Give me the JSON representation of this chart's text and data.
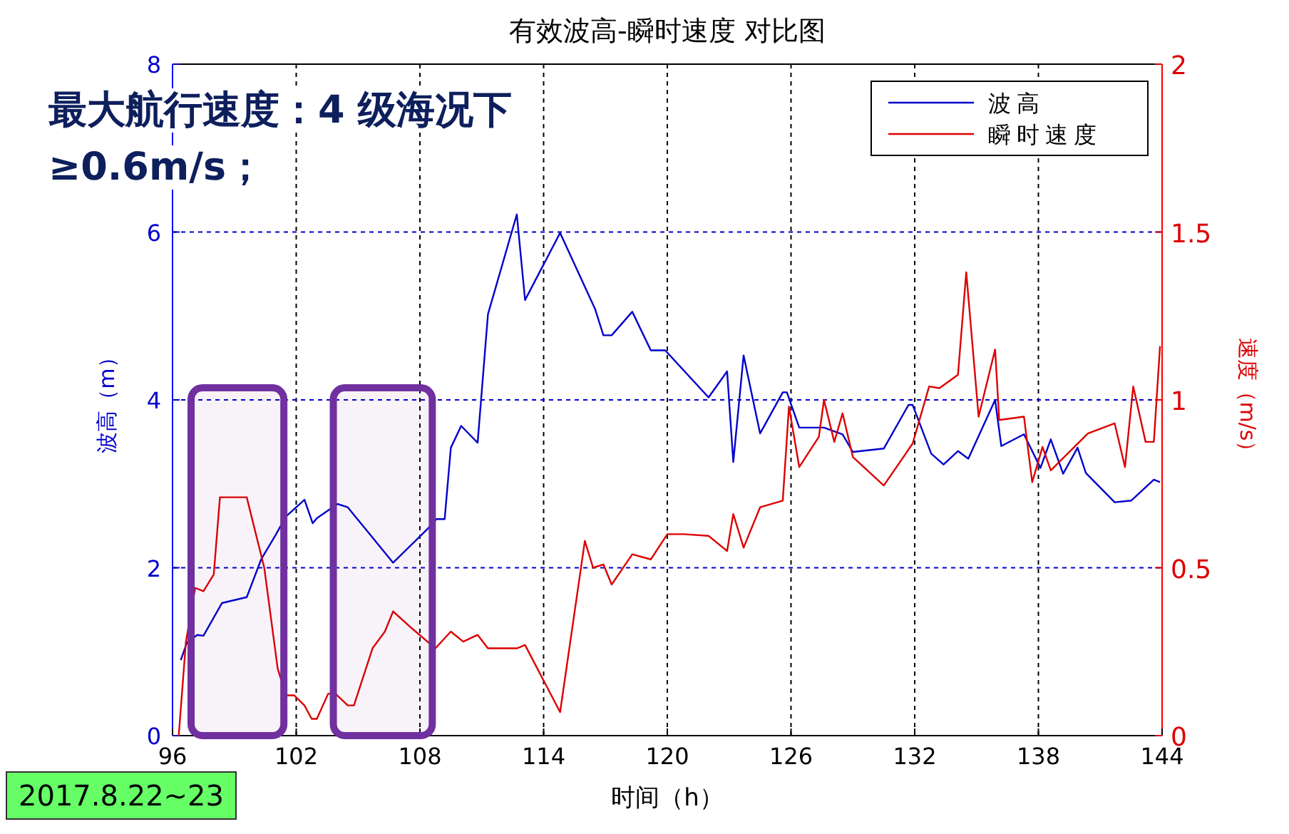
{
  "chart_data": {
    "type": "line",
    "title": "有效波高-瞬时速度 对比图",
    "xlabel": "时间（h）",
    "ylabel": "波高（m）",
    "y2label": "速度（m/s）",
    "annotations": [
      "最大航行速度：4 级海况下 ≥0.6m/s；",
      "2017.8.22~23"
    ],
    "xlim": [
      96,
      144
    ],
    "xticks": [
      96,
      102,
      108,
      114,
      120,
      126,
      132,
      138,
      144
    ],
    "ylim": [
      0,
      8
    ],
    "yticks": [
      0,
      2,
      4,
      6,
      8
    ],
    "y2lim": [
      0,
      2
    ],
    "y2ticks": [
      0,
      0.5,
      1,
      1.5,
      2
    ],
    "grid": true,
    "legend": "top right",
    "bands": [
      {
        "axis": "x",
        "from": 96.9,
        "to": 101.4,
        "color": "#7030a0"
      },
      {
        "axis": "x",
        "from": 103.8,
        "to": 108.6,
        "color": "#7030a0"
      }
    ],
    "series": [
      {
        "name": "波高",
        "color": "#0000cc",
        "x": [
          96.4,
          96.7,
          97.2,
          97.5,
          98.4,
          99.6,
          100.3,
          101.0,
          101.5,
          102.4,
          102.8,
          103.0,
          104.0,
          104.5,
          106.7,
          108.4,
          108.8,
          109.2,
          109.5,
          110.0,
          110.8,
          111.3,
          112.7,
          113.1,
          114.8,
          116.5,
          116.9,
          117.3,
          118.3,
          119.2,
          119.9,
          122.0,
          122.9,
          123.2,
          123.7,
          124.5,
          125.6,
          125.8,
          126.4,
          127.6,
          128.5,
          129.0,
          130.5,
          131.7,
          131.9,
          132.8,
          133.4,
          134.1,
          134.6,
          135.9,
          136.2,
          137.3,
          138.1,
          138.6,
          139.2,
          139.9,
          140.3,
          141.7,
          142.5,
          143.6,
          143.9
        ],
        "values": [
          0.9,
          1.11,
          1.2,
          1.19,
          1.58,
          1.65,
          2.1,
          2.39,
          2.61,
          2.81,
          2.53,
          2.59,
          2.76,
          2.72,
          2.06,
          2.47,
          2.58,
          2.58,
          3.43,
          3.69,
          3.49,
          5.02,
          6.21,
          5.19,
          5.99,
          5.08,
          4.77,
          4.77,
          5.05,
          4.59,
          4.59,
          4.03,
          4.34,
          3.26,
          4.53,
          3.6,
          4.09,
          4.09,
          3.67,
          3.67,
          3.59,
          3.38,
          3.42,
          3.94,
          3.94,
          3.36,
          3.23,
          3.39,
          3.3,
          4.0,
          3.45,
          3.59,
          3.19,
          3.53,
          3.12,
          3.43,
          3.13,
          2.78,
          2.8,
          3.05,
          3.02
        ]
      },
      {
        "name": "瞬时速度",
        "color": "#dd0000",
        "axis": "y2",
        "x": [
          96.3,
          96.65,
          97.1,
          97.5,
          98.0,
          98.3,
          98.95,
          99.6,
          100.45,
          101.1,
          101.5,
          101.9,
          102.4,
          102.75,
          103.0,
          103.55,
          103.9,
          104.5,
          104.8,
          105.7,
          106.3,
          106.7,
          107.6,
          108.75,
          109.5,
          110.1,
          110.8,
          111.3,
          112.7,
          113.1,
          114.8,
          116.0,
          116.4,
          116.9,
          117.3,
          118.3,
          119.2,
          120.0,
          120.8,
          122.0,
          122.9,
          123.2,
          123.7,
          124.5,
          125.6,
          125.9,
          126.4,
          127.35,
          127.6,
          128.1,
          128.5,
          129.0,
          130.5,
          131.9,
          132.7,
          133.2,
          134.1,
          134.5,
          135.1,
          135.9,
          136.1,
          137.3,
          137.7,
          138.2,
          138.6,
          140.4,
          141.7,
          142.2,
          142.6,
          143.2,
          143.6,
          143.9
        ],
        "values": [
          0,
          0.28,
          0.44,
          0.43,
          0.48,
          0.71,
          0.71,
          0.71,
          0.5,
          0.2,
          0.12,
          0.12,
          0.09,
          0.05,
          0.05,
          0.125,
          0.125,
          0.09,
          0.09,
          0.26,
          0.31,
          0.37,
          0.32,
          0.26,
          0.31,
          0.28,
          0.3,
          0.26,
          0.26,
          0.27,
          0.07,
          0.58,
          0.5,
          0.51,
          0.45,
          0.54,
          0.525,
          0.6,
          0.6,
          0.595,
          0.55,
          0.66,
          0.56,
          0.68,
          0.7,
          0.98,
          0.8,
          0.89,
          1.0,
          0.875,
          0.96,
          0.83,
          0.745,
          0.87,
          1.04,
          1.035,
          1.075,
          1.38,
          0.95,
          1.15,
          0.94,
          0.95,
          0.755,
          0.86,
          0.79,
          0.9,
          0.93,
          0.8,
          1.04,
          0.875,
          0.875,
          1.16
        ]
      }
    ]
  }
}
